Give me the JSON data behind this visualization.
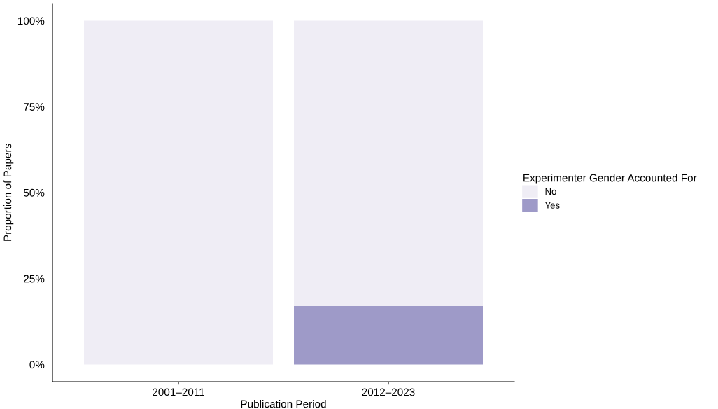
{
  "chart_data": {
    "type": "bar",
    "stacked": true,
    "xlabel": "Publication Period",
    "ylabel": "Proportion of Papers",
    "legend_title": "Experimenter Gender Accounted For",
    "categories": [
      "2001–2011",
      "2012–2023"
    ],
    "series": [
      {
        "name": "Yes",
        "color": "#9e9ac8",
        "values": [
          0,
          17
        ]
      },
      {
        "name": "No",
        "color": "#efedf5",
        "values": [
          100,
          83
        ]
      }
    ],
    "ylim": [
      -5,
      105
    ],
    "yticks": [
      {
        "value": 0,
        "label": "0%"
      },
      {
        "value": 25,
        "label": "25%"
      },
      {
        "value": 50,
        "label": "50%"
      },
      {
        "value": 75,
        "label": "75%"
      },
      {
        "value": 100,
        "label": "100%"
      }
    ],
    "grid": false,
    "legend": "right"
  }
}
